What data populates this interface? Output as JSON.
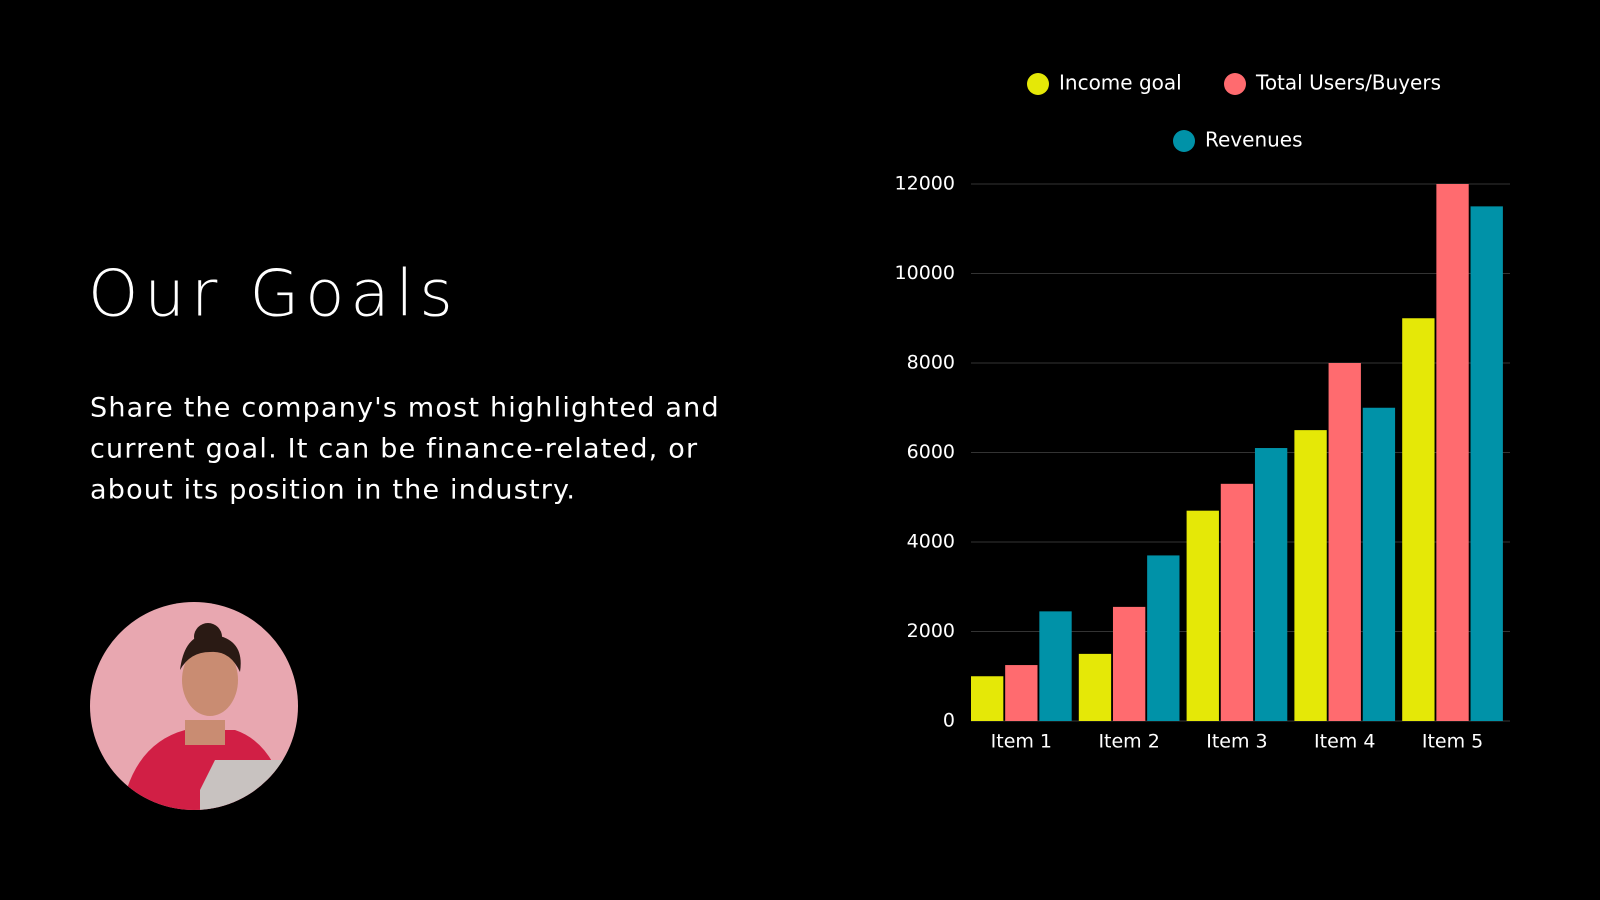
{
  "slide": {
    "title": "Our Goals",
    "body_lines": [
      "Share the company's most highlighted and",
      "current goal. It can be finance-related, or",
      "about its position in the industry."
    ]
  },
  "chart_data": {
    "type": "bar",
    "categories": [
      "Item 1",
      "Item 2",
      "Item 3",
      "Item 4",
      "Item 5"
    ],
    "series": [
      {
        "name": "Income goal",
        "color": "#e5e807",
        "values": [
          1000,
          1500,
          4700,
          6500,
          9000
        ]
      },
      {
        "name": "Total Users/Buyers",
        "color": "#ff6b6f",
        "values": [
          1250,
          2550,
          5300,
          8000,
          12000
        ]
      },
      {
        "name": "Revenues",
        "color": "#0092a8",
        "values": [
          2450,
          3700,
          6100,
          7000,
          11500
        ]
      }
    ],
    "ylim": [
      0,
      12000
    ],
    "yticks": [
      0,
      2000,
      4000,
      6000,
      8000,
      10000,
      12000
    ],
    "grid": true,
    "legend": "top"
  }
}
